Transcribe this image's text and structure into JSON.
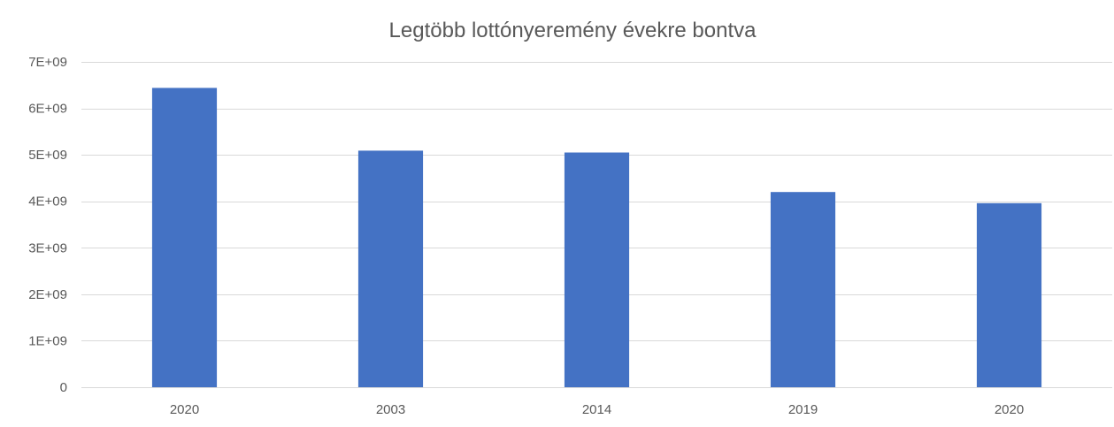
{
  "chart_data": {
    "type": "bar",
    "title": "Legtöbb lottónyeremény évekre bontva",
    "xlabel": "",
    "ylabel": "",
    "categories": [
      "2020",
      "2003",
      "2014",
      "2019",
      "2020"
    ],
    "values": [
      6440000000,
      5090000000,
      5050000000,
      4200000000,
      3960000000
    ],
    "ylim": [
      0,
      7000000000
    ],
    "y_ticks": [
      0,
      1000000000,
      2000000000,
      3000000000,
      4000000000,
      5000000000,
      6000000000,
      7000000000
    ],
    "y_tick_labels": [
      "0",
      "1E+09",
      "2E+09",
      "3E+09",
      "4E+09",
      "5E+09",
      "6E+09",
      "7E+09"
    ],
    "grid": true,
    "legend": "none",
    "colors": {
      "bar": "#4472c4",
      "grid": "#d9d9d9",
      "text": "#595959"
    }
  }
}
